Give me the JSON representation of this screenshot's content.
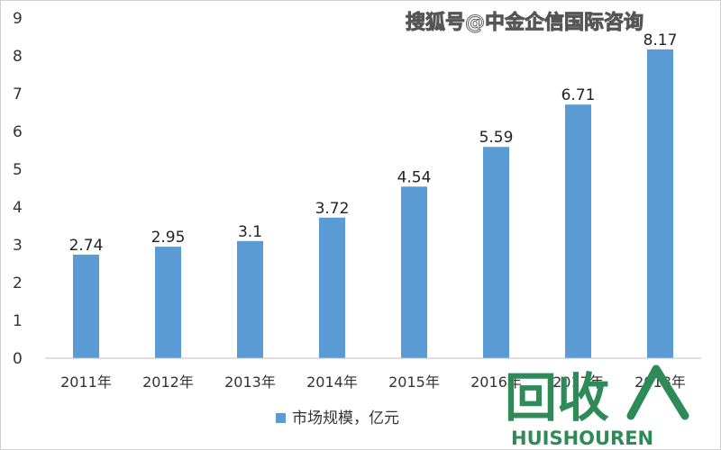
{
  "chart_data": {
    "type": "bar",
    "categories": [
      "2011年",
      "2012年",
      "2013年",
      "2014年",
      "2015年",
      "2016年",
      "2017年",
      "2018年"
    ],
    "values": [
      2.74,
      2.95,
      3.1,
      3.72,
      4.54,
      5.59,
      6.71,
      8.17
    ],
    "value_labels": [
      "2.74",
      "2.95",
      "3.1",
      "3.72",
      "4.54",
      "5.59",
      "6.71",
      "8.17"
    ],
    "series": [
      {
        "name": "市场规模，亿元",
        "values": [
          2.74,
          2.95,
          3.1,
          3.72,
          4.54,
          5.59,
          6.71,
          8.17
        ]
      }
    ],
    "ylim": [
      0,
      9
    ],
    "yticks": [
      "0",
      "1",
      "2",
      "3",
      "4",
      "5",
      "6",
      "7",
      "8",
      "9"
    ],
    "grid": false,
    "legend_position": "bottom-center",
    "title": "",
    "xlabel": "",
    "ylabel": "",
    "bar_color": "#5b9bd5"
  },
  "watermarks": {
    "source": "搜狐号@中金企信国际咨询",
    "logo_cn": "回收",
    "logo_en": "HUISHOUREN"
  },
  "colors": {
    "logo": "#2e8b57"
  }
}
